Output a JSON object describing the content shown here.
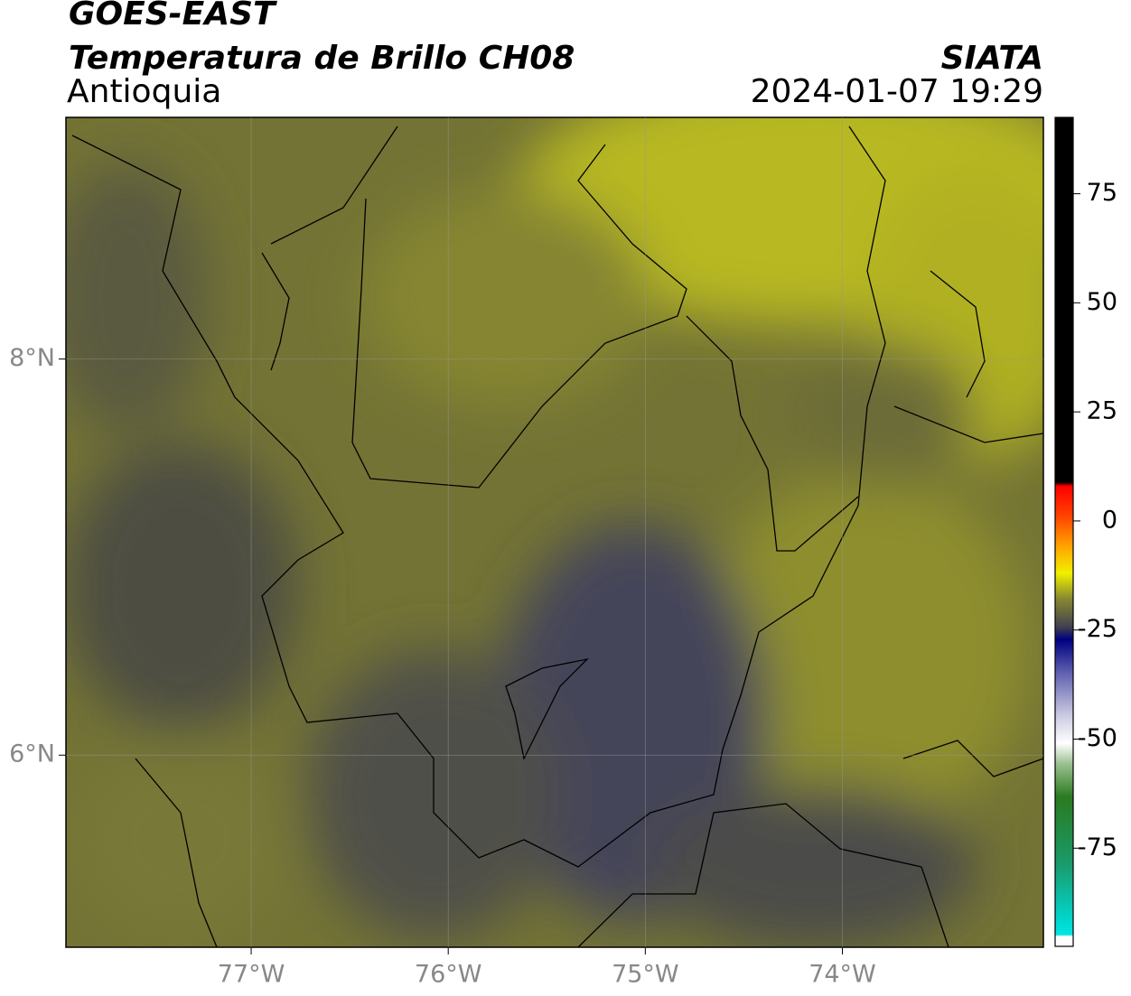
{
  "header": {
    "title": "GOES-EAST",
    "subtitle": "Temperatura de Brillo CH08",
    "region": "Antioquia",
    "source": "SIATA",
    "datetime": "2024-01-07 19:29"
  },
  "map": {
    "xlim": [
      -77.94,
      -72.98
    ],
    "ylim": [
      5.03,
      9.22
    ],
    "xticks": [
      {
        "value": -77,
        "label": "77°W"
      },
      {
        "value": -76,
        "label": "76°W"
      },
      {
        "value": -75,
        "label": "75°W"
      },
      {
        "value": -74,
        "label": "74°W"
      }
    ],
    "yticks": [
      {
        "value": 6,
        "label": "6°N"
      },
      {
        "value": 8,
        "label": "8°N"
      }
    ],
    "grid": true
  },
  "colorbar": {
    "lim": [
      -97.5,
      92.5
    ],
    "ticks": [
      75,
      50,
      25,
      0,
      -25,
      -50,
      -75
    ]
  }
}
